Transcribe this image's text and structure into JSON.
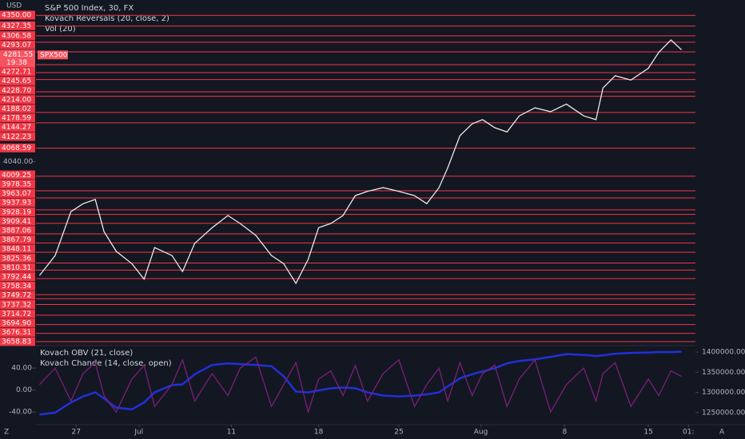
{
  "currency": "USD",
  "corner_left": "Z",
  "corner_right": "A",
  "chart_data": [
    {
      "type": "line",
      "title": "S&P 500 Index, 30, FX",
      "indicators": [
        "Kovach Reversals (20, close, 2)",
        "Vol (20)"
      ],
      "x": [
        -2.1,
        -1.2,
        -0.3,
        0.4,
        1.1,
        1.6,
        2.3,
        3.2,
        3.9,
        4.5,
        5.5,
        6.1,
        6.8,
        7.8,
        8.7,
        9.4,
        10.3,
        11.2,
        11.9,
        12.6,
        13.3,
        13.9,
        14.6,
        15.3,
        16.0,
        16.7,
        17.6,
        18.5,
        19.4,
        20.1,
        20.8,
        21.3,
        22.0,
        22.7,
        23.3,
        24.0,
        24.7,
        25.4,
        26.3,
        27.2,
        28.1,
        29.1,
        29.8,
        30.2,
        30.9,
        31.8,
        32.8,
        33.4,
        34.1,
        34.7
      ],
      "series": [
        {
          "color": "#e8e8e8",
          "values": [
            3799,
            3841,
            3934,
            3951,
            3960,
            3892,
            3850,
            3824,
            3791,
            3858,
            3841,
            3807,
            3867,
            3900,
            3926,
            3909,
            3884,
            3841,
            3824,
            3782,
            3833,
            3900,
            3909,
            3926,
            3968,
            3977,
            3985,
            3977,
            3968,
            3951,
            3985,
            4027,
            4095,
            4120,
            4129,
            4112,
            4103,
            4137,
            4154,
            4146,
            4162,
            4137,
            4129,
            4196,
            4222,
            4213,
            4238,
            4272,
            4298,
            4277
          ]
        }
      ],
      "xlim": [
        -2.3,
        35.5
      ],
      "ylim": [
        3652,
        4369
      ],
      "yticks": [
        {
          "value": 4040,
          "label": "4040.00"
        }
      ],
      "levels": [
        {
          "value": 4350,
          "label": "4350.00"
        },
        {
          "value": 4327.35,
          "label": "4327.35"
        },
        {
          "value": 4306.58,
          "label": "4306.58"
        },
        {
          "value": 4293.07,
          "label": "4293.07"
        },
        {
          "value": 4272.71,
          "label": "4272.71"
        },
        {
          "value": 4245.65,
          "label": "4245.65"
        },
        {
          "value": 4228.7,
          "label": "4228.70"
        },
        {
          "value": 4214,
          "label": "4214.00"
        },
        {
          "value": 4188.02,
          "label": "4188.02"
        },
        {
          "value": 4178.59,
          "label": "4178.59"
        },
        {
          "value": 4144.27,
          "label": "4144.27"
        },
        {
          "value": 4122.23,
          "label": "4122.23"
        },
        {
          "value": 4068.59,
          "label": "4068.59"
        },
        {
          "value": 4009.25,
          "label": "4009.25"
        },
        {
          "value": 3978.35,
          "label": "3978.35"
        },
        {
          "value": 3963.07,
          "label": "3963.07"
        },
        {
          "value": 3937.93,
          "label": "3937.93"
        },
        {
          "value": 3928.19,
          "label": "3928.19"
        },
        {
          "value": 3909.41,
          "label": "3909.41"
        },
        {
          "value": 3887.06,
          "label": "3887.06"
        },
        {
          "value": 3867.79,
          "label": "3867.79"
        },
        {
          "value": 3848.11,
          "label": "3848.11"
        },
        {
          "value": 3825.36,
          "label": "3825.36"
        },
        {
          "value": 3810.31,
          "label": "3810.31"
        },
        {
          "value": 3792.44,
          "label": "3792.44"
        },
        {
          "value": 3758.34,
          "label": "3758.34"
        },
        {
          "value": 3749.72,
          "label": "3749.72"
        },
        {
          "value": 3737.32,
          "label": "3737.32"
        },
        {
          "value": 3714.72,
          "label": "3714.72"
        },
        {
          "value": 3694.9,
          "label": "3694.90"
        },
        {
          "value": 3676.31,
          "label": "3676.31"
        },
        {
          "value": 3658.83,
          "label": "3658.83"
        }
      ],
      "level_color": "#f23645",
      "last_price": {
        "value": 4281.55,
        "label": "4281.55",
        "time": "19:38",
        "symbol": "SPX500"
      }
    },
    {
      "type": "line",
      "x": [
        -2.1,
        -1.2,
        -0.3,
        0.4,
        1.1,
        1.6,
        2.3,
        3.2,
        3.9,
        4.5,
        5.5,
        6.1,
        6.8,
        7.8,
        8.7,
        9.4,
        10.3,
        11.2,
        11.9,
        12.6,
        13.3,
        13.9,
        14.6,
        15.3,
        16.0,
        16.7,
        17.6,
        18.5,
        19.4,
        20.1,
        20.8,
        21.3,
        22.0,
        22.7,
        23.3,
        24.0,
        24.7,
        25.4,
        26.3,
        27.2,
        28.1,
        29.1,
        29.8,
        30.2,
        30.9,
        31.8,
        32.8,
        33.4,
        34.1,
        34.7
      ],
      "series": [
        {
          "name": "Kovach OBV (21, close)",
          "color": "#2130d9",
          "axis": "y2",
          "values": [
            1245000,
            1250000,
            1275000,
            1290000,
            1300000,
            1285000,
            1262000,
            1258000,
            1275000,
            1300000,
            1318000,
            1320000,
            1345000,
            1368000,
            1372000,
            1370000,
            1368000,
            1365000,
            1340000,
            1302000,
            1300000,
            1305000,
            1310000,
            1312000,
            1310000,
            1300000,
            1292000,
            1290000,
            1292000,
            1295000,
            1300000,
            1315000,
            1335000,
            1345000,
            1352000,
            1360000,
            1372000,
            1378000,
            1382000,
            1388000,
            1395000,
            1393000,
            1390000,
            1392000,
            1396000,
            1398000,
            1399000,
            1400000,
            1400000,
            1401000
          ]
        },
        {
          "name": "Kovach Chande (14, close, open)",
          "color": "#7b1f7a",
          "values": [
            10,
            40,
            -20,
            30,
            50,
            -10,
            -40,
            20,
            45,
            -30,
            10,
            55,
            -20,
            30,
            -10,
            40,
            60,
            -30,
            10,
            50,
            -40,
            20,
            35,
            -10,
            45,
            -20,
            30,
            55,
            -30,
            10,
            40,
            -20,
            50,
            -10,
            30,
            45,
            -30,
            20,
            55,
            -40,
            10,
            40,
            -20,
            30,
            50,
            -30,
            20,
            -10,
            35,
            25
          ]
        }
      ],
      "xlim": [
        -2.3,
        35.5
      ],
      "ylim": [
        -60,
        78
      ],
      "yticks": [
        {
          "value": 40,
          "label": "40.00"
        },
        {
          "value": 0,
          "label": "0.00"
        },
        {
          "value": -40,
          "label": "-40.00"
        }
      ],
      "y2lim": [
        1224000,
        1412000
      ],
      "y2ticks": [
        {
          "value": 1400000,
          "label": "1400000.00"
        },
        {
          "value": 1350000,
          "label": "1350000.00"
        },
        {
          "value": 1300000,
          "label": "1300000.00"
        },
        {
          "value": 1250000,
          "label": "1250000.00"
        }
      ],
      "xticks": [
        {
          "value": 0,
          "label": "27"
        },
        {
          "value": 3.6,
          "label": "Jul"
        },
        {
          "value": 8.9,
          "label": "11"
        },
        {
          "value": 13.9,
          "label": "18"
        },
        {
          "value": 18.5,
          "label": "25"
        },
        {
          "value": 23.2,
          "label": "Aug"
        },
        {
          "value": 28,
          "label": "8"
        },
        {
          "value": 32.8,
          "label": "15"
        },
        {
          "value": 35.1,
          "label": "01:"
        }
      ]
    }
  ]
}
